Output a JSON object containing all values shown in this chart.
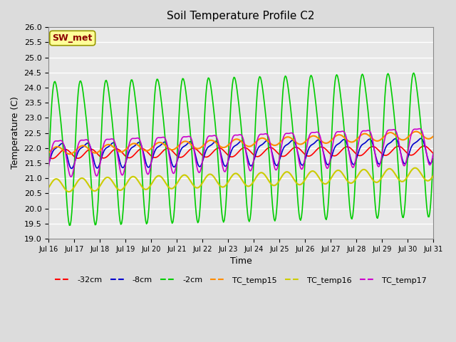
{
  "title": "Soil Temperature Profile C2",
  "xlabel": "Time",
  "ylabel": "Temperature (C)",
  "ylim": [
    19.0,
    26.0
  ],
  "yticks": [
    19.0,
    19.5,
    20.0,
    20.5,
    21.0,
    21.5,
    22.0,
    22.5,
    23.0,
    23.5,
    24.0,
    24.5,
    25.0,
    25.5,
    26.0
  ],
  "xtick_positions": [
    16,
    17,
    18,
    19,
    20,
    21,
    22,
    23,
    24,
    25,
    26,
    27,
    28,
    29,
    30,
    31
  ],
  "xtick_labels": [
    "Jul 16",
    "Jul 17",
    "Jul 18",
    "Jul 19",
    "Jul 20",
    "Jul 21",
    "Jul 22",
    "Jul 23",
    "Jul 24",
    "Jul 25",
    "Jul 26",
    "Jul 27",
    "Jul 28",
    "Jul 29",
    "Jul 30",
    "Jul 31"
  ],
  "annotation": "SW_met",
  "annotation_color": "#8B0000",
  "annotation_bg": "#FFFF99",
  "annotation_edge": "#999900",
  "fig_bg": "#DCDCDC",
  "plot_bg": "#E8E8E8",
  "grid_color": "#FFFFFF",
  "series_colors": {
    "m32cm": "#FF0000",
    "m8cm": "#0000CD",
    "m2cm": "#00CC00",
    "TC_temp15": "#FF8C00",
    "TC_temp16": "#CCCC00",
    "TC_temp17": "#CC00CC"
  },
  "series_labels": [
    "-32cm",
    "-8cm",
    "-2cm",
    "TC_temp15",
    "TC_temp16",
    "TC_temp17"
  ],
  "n_points": 480,
  "time_start": 16,
  "time_end": 31
}
